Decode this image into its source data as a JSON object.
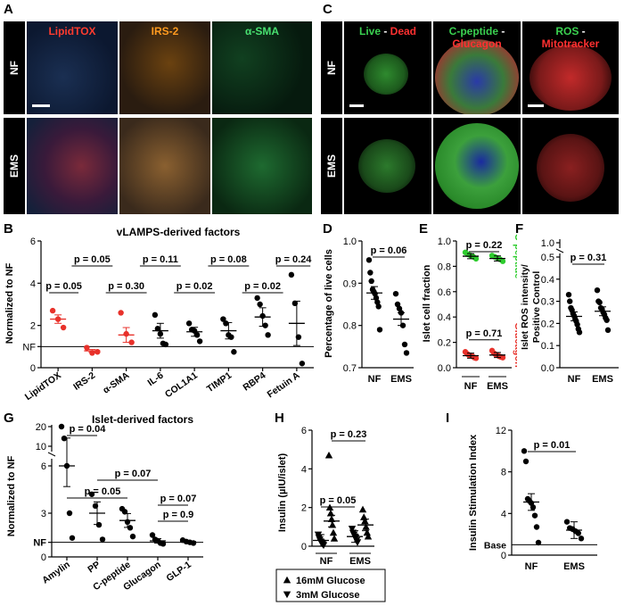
{
  "panel_letters": [
    "A",
    "B",
    "C",
    "D",
    "E",
    "F",
    "G",
    "H",
    "I"
  ],
  "rows": {
    "nf": "NF",
    "ems": "EMS"
  },
  "panel_a": {
    "stains": [
      {
        "name": "LipidTOX",
        "color": "#ff3b2f"
      },
      {
        "name": "IRS-2",
        "color": "#ff9a1f"
      },
      {
        "name": "α-SMA",
        "color": "#48e070"
      }
    ]
  },
  "panel_c": {
    "stains": [
      {
        "parts": [
          {
            "t": "Live",
            "c": "#3ad050"
          },
          {
            "t": " - ",
            "c": "#ffffff"
          },
          {
            "t": "Dead",
            "c": "#ff3030"
          }
        ]
      },
      {
        "parts": [
          {
            "t": "C-peptide",
            "c": "#3ad050"
          },
          {
            "t": " -",
            "c": "#ffffff"
          }
        ],
        "line2": {
          "t": "Glucagon",
          "c": "#ff3030"
        }
      },
      {
        "parts": [
          {
            "t": "ROS",
            "c": "#3ad050"
          },
          {
            "t": " -",
            "c": "#ffffff"
          }
        ],
        "line2": {
          "t": "Mitotracker",
          "c": "#ff3030"
        }
      }
    ]
  },
  "chart_data": [
    {
      "panel": "B",
      "type": "scatter",
      "title": "vLAMPS-derived factors",
      "ylabel": "Normalized to NF",
      "ylim": [
        0,
        6
      ],
      "yticks": [
        "0",
        "NF",
        "2",
        "4",
        "6"
      ],
      "baseline_label": "NF",
      "categories": [
        "LipidTOX",
        "IRS-2",
        "α-SMA",
        "IL-6",
        "COL1A1",
        "TIMP1",
        "RBP4",
        "Fetuin A"
      ],
      "colors": [
        "#e8312a",
        "#e8312a",
        "#e8312a",
        "#000000",
        "#000000",
        "#000000",
        "#000000",
        "#000000"
      ],
      "points": [
        [
          2.7,
          2.3,
          1.9
        ],
        [
          0.95,
          0.7,
          0.75
        ],
        [
          2.6,
          1.6,
          1.2
        ],
        [
          2.5,
          1.85,
          1.6,
          1.15,
          1.1
        ],
        [
          2.1,
          1.8,
          1.75,
          1.55,
          1.25
        ],
        [
          2.3,
          2.1,
          1.55,
          1.45,
          0.75
        ],
        [
          3.3,
          3.0,
          2.45,
          2.0,
          1.55
        ],
        [
          4.4,
          3.05,
          1.45,
          0.2
        ]
      ],
      "means": [
        2.3,
        0.8,
        1.55,
        1.75,
        1.7,
        1.75,
        2.4,
        2.1
      ],
      "pvalues": [
        {
          "label": "p = 0.05",
          "level": 3.75
        },
        {
          "label": "p = 0.05",
          "level": 4.75
        },
        {
          "label": "p = 0.30",
          "level": 3.75
        },
        {
          "label": "p = 0.11",
          "level": 4.75
        },
        {
          "label": "p = 0.02",
          "level": 3.75
        },
        {
          "label": "p = 0.08",
          "level": 4.75
        },
        {
          "label": "p = 0.02",
          "level": 3.75
        },
        {
          "label": "p = 0.24",
          "level": 4.75
        }
      ]
    },
    {
      "panel": "D",
      "type": "scatter",
      "ylabel": "Percentage of live cells",
      "ylim": [
        0.7,
        1.0
      ],
      "yticks": [
        "0.7",
        "0.8",
        "0.9",
        "1.0"
      ],
      "categories": [
        "NF",
        "EMS"
      ],
      "points": [
        [
          0.955,
          0.925,
          0.905,
          0.885,
          0.88,
          0.875,
          0.865,
          0.855,
          0.845,
          0.79
        ],
        [
          0.875,
          0.85,
          0.84,
          0.83,
          0.8,
          0.755,
          0.735
        ]
      ],
      "means": [
        0.877,
        0.815
      ],
      "pvalue": "p = 0.06"
    },
    {
      "panel": "E",
      "type": "scatter",
      "ylabel": "Islet cell fraction",
      "ylim": [
        0,
        1
      ],
      "yticks": [
        "0.0",
        "0.2",
        "0.4",
        "0.6",
        "0.8",
        "1.0"
      ],
      "categories": [
        "NF",
        "EMS"
      ],
      "series": [
        {
          "name": "C-peptide",
          "color": "#2ecc2e",
          "values": [
            [
              0.91,
              0.895,
              0.885,
              0.875,
              0.86
            ],
            [
              0.885,
              0.875,
              0.865,
              0.855,
              0.84
            ]
          ],
          "means": [
            0.88,
            0.862
          ]
        },
        {
          "name": "Glucagon",
          "color": "#e8312a",
          "values": [
            [
              0.125,
              0.11,
              0.1,
              0.095,
              0.09,
              0.08,
              0.075
            ],
            [
              0.135,
              0.115,
              0.105,
              0.1,
              0.09,
              0.085,
              0.08
            ]
          ],
          "means": [
            0.095,
            0.1
          ]
        }
      ],
      "pvalues": [
        "p = 0.22",
        "p = 0.71"
      ]
    },
    {
      "panel": "F",
      "type": "scatter",
      "ylabel": "Islet ROS intensity/ Positive Control",
      "ylim": [
        0,
        1.0
      ],
      "broken_axis": true,
      "yticks": [
        "0.0",
        "0.1",
        "0.2",
        "0.3",
        "0.4",
        "0.5",
        "1.0"
      ],
      "categories": [
        "NF",
        "EMS"
      ],
      "points": [
        [
          0.33,
          0.3,
          0.27,
          0.26,
          0.245,
          0.235,
          0.22,
          0.21,
          0.195,
          0.175,
          0.16
        ],
        [
          0.35,
          0.3,
          0.295,
          0.27,
          0.265,
          0.25,
          0.24,
          0.225,
          0.215,
          0.17
        ]
      ],
      "means": [
        0.232,
        0.255
      ],
      "pvalue": "p = 0.31"
    },
    {
      "panel": "G",
      "type": "scatter",
      "title": "Islet-derived factors",
      "ylabel": "Normalized to NF",
      "broken_axis": true,
      "yticks": [
        "0",
        "NF",
        "3",
        "6",
        "10",
        "20"
      ],
      "baseline_label": "NF",
      "categories": [
        "Amylin",
        "PP",
        "C-peptide",
        "Glucagon",
        "GLP-1"
      ],
      "points": [
        [
          20,
          14,
          9,
          3,
          1.3
        ],
        [
          4.3,
          3.5,
          2.2,
          1.2
        ],
        [
          3.3,
          3.1,
          2.4,
          2.0,
          1.4
        ],
        [
          1.5,
          1.2,
          1.1,
          0.95,
          0.9
        ],
        [
          1.15,
          1.05,
          1.0,
          0.95
        ]
      ],
      "means": [
        9.5,
        3.0,
        2.5,
        1.1,
        1.05
      ],
      "pvalues": [
        {
          "label": "p = 0.04"
        },
        {
          "label": "p = 0.05"
        },
        {
          "label": "p = 0.07"
        },
        {
          "label": "p = 0.9"
        },
        {
          "label": "p = 0.07"
        }
      ]
    },
    {
      "panel": "H",
      "type": "scatter",
      "ylabel": "Insulin (µIU/islet)",
      "ylim": [
        0,
        6
      ],
      "yticks": [
        "0",
        "2",
        "4",
        "6"
      ],
      "categories": [
        "NF",
        "EMS"
      ],
      "series": [
        {
          "name": "3mM Glucose",
          "marker": "down",
          "values": [
            [
              0.6,
              0.45,
              0.35,
              0.25,
              0.2,
              0.15,
              0.1,
              0.05
            ],
            [
              0.9,
              0.7,
              0.6,
              0.5,
              0.45,
              0.3,
              0.2
            ]
          ],
          "means": [
            0.3,
            0.5
          ]
        },
        {
          "name": "16mM Glucose",
          "marker": "up",
          "values": [
            [
              4.7,
              2.0,
              1.7,
              1.4,
              1.1,
              0.7,
              0.4
            ],
            [
              1.9,
              1.5,
              1.3,
              1.0,
              0.7,
              0.5
            ]
          ],
          "means": [
            1.3,
            1.1
          ]
        }
      ],
      "pvalues": [
        "p = 0.23",
        "p = 0.05"
      ],
      "legend": [
        "16mM Glucose",
        "3mM Glucose"
      ]
    },
    {
      "panel": "I",
      "type": "scatter",
      "ylabel": "Insulin Stimulation Index",
      "ylim": [
        0,
        12
      ],
      "yticks": [
        "0",
        "4",
        "8",
        "12"
      ],
      "baseline_label": "Base",
      "categories": [
        "NF",
        "EMS"
      ],
      "points": [
        [
          10,
          9,
          5.4,
          5.2,
          5.0,
          4.6,
          3.8,
          2.7,
          1.2
        ],
        [
          3.2,
          2.6,
          2.5,
          2.3,
          2.1,
          1.6
        ]
      ],
      "means": [
        5.1,
        2.4
      ],
      "pvalue": "p = 0.01"
    }
  ]
}
